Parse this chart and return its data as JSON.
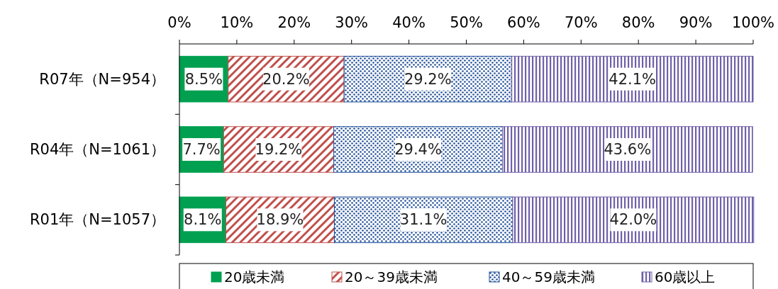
{
  "chart_data": {
    "type": "bar",
    "orientation": "horizontal",
    "stacked": true,
    "categories": [
      "R07年（N=954）",
      "R04年（N=1061）",
      "R01年（N=1057）"
    ],
    "series": [
      {
        "name": "20歳未満",
        "color": "#00a050",
        "values": [
          8.5,
          7.7,
          8.1
        ],
        "value_labels": [
          "8.5%",
          "7.7%",
          "8.1%"
        ]
      },
      {
        "name": "20～39歳未満",
        "color": "#c0504d",
        "values": [
          20.2,
          19.2,
          18.9
        ],
        "value_labels": [
          "20.2%",
          "19.2%",
          "18.9%"
        ]
      },
      {
        "name": "40～59歳未満",
        "color": "#1f4e9a",
        "values": [
          29.2,
          29.4,
          31.1
        ],
        "value_labels": [
          "29.2%",
          "29.4%",
          "31.1%"
        ]
      },
      {
        "name": "60歳以上",
        "color": "#7060a8",
        "values": [
          42.1,
          43.6,
          42.0
        ],
        "value_labels": [
          "42.1%",
          "43.6%",
          "42.0%"
        ]
      }
    ],
    "xlim": [
      0,
      100
    ],
    "xticks": [
      {
        "value": 0,
        "label": "0%"
      },
      {
        "value": 10,
        "label": "10%"
      },
      {
        "value": 20,
        "label": "20%"
      },
      {
        "value": 30,
        "label": "30%"
      },
      {
        "value": 40,
        "label": "40%"
      },
      {
        "value": 50,
        "label": "50%"
      },
      {
        "value": 60,
        "label": "60%"
      },
      {
        "value": 70,
        "label": "70%"
      },
      {
        "value": 80,
        "label": "80%"
      },
      {
        "value": 90,
        "label": "90%"
      },
      {
        "value": 100,
        "label": "100%"
      }
    ],
    "legend": "bottom",
    "grid": false
  }
}
